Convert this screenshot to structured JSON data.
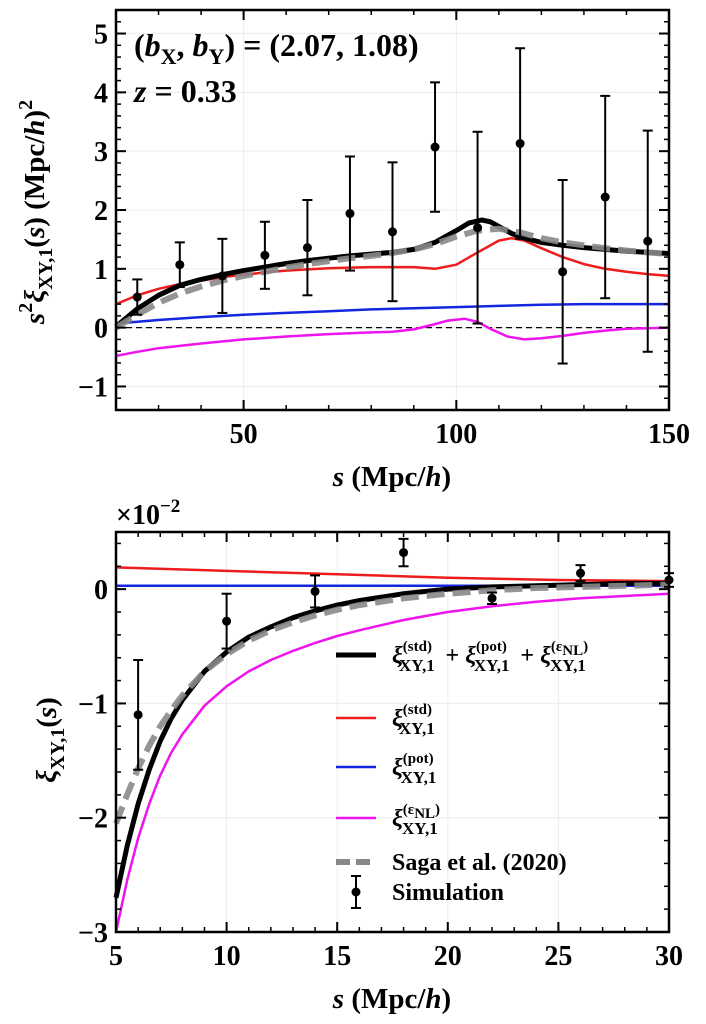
{
  "chart_data": [
    {
      "type": "line",
      "annotation_line1": "(bX, bY) = (2.07, 1.08)",
      "annotation_bias": {
        "lhs_b": "b",
        "lhs_x": "X",
        "lhs_sep": ", ",
        "lhs_y": "Y",
        "rhs": " = (2.07, 1.08)"
      },
      "annotation_z": {
        "var": "z",
        "rhs": " = 0.33"
      },
      "xlabel": {
        "var": "s",
        "unit": " (Mpc/",
        "h": "h",
        "close": ")"
      },
      "ylabel": {
        "s2": "s",
        "sup2": "2",
        "xi": "ξ",
        "sub": "XY,1",
        "arg": "(s)",
        "unit": " (Mpc/",
        "h": "h",
        "close": ")",
        "sq": "2"
      },
      "xlim": [
        20,
        150
      ],
      "ylim": [
        -1.4,
        5.4
      ],
      "xticks": [
        50,
        100,
        150
      ],
      "xtick_labels": [
        "50",
        "100",
        "150"
      ],
      "yticks": [
        -1,
        0,
        1,
        2,
        3,
        4,
        5
      ],
      "ytick_labels": [
        "−1",
        "0",
        "1",
        "2",
        "3",
        "4",
        "5"
      ],
      "series": [
        {
          "name": "total",
          "color": "#000000",
          "style": "solid",
          "x": [
            20,
            25,
            30,
            35,
            40,
            45,
            50,
            55,
            60,
            65,
            70,
            75,
            80,
            85,
            90,
            95,
            100,
            103,
            106,
            108,
            110,
            113,
            116,
            120,
            125,
            130,
            135,
            140,
            145,
            150
          ],
          "y": [
            0.02,
            0.32,
            0.55,
            0.72,
            0.82,
            0.9,
            0.97,
            1.03,
            1.09,
            1.14,
            1.18,
            1.22,
            1.25,
            1.28,
            1.33,
            1.45,
            1.65,
            1.78,
            1.83,
            1.8,
            1.72,
            1.6,
            1.52,
            1.45,
            1.4,
            1.36,
            1.33,
            1.3,
            1.28,
            1.26
          ]
        },
        {
          "name": "std",
          "color": "#ee1c1c",
          "style": "solid",
          "x": [
            20,
            25,
            30,
            35,
            40,
            45,
            50,
            55,
            60,
            65,
            70,
            75,
            80,
            85,
            90,
            95,
            100,
            105,
            110,
            113,
            116,
            120,
            125,
            130,
            135,
            140,
            145,
            150
          ],
          "y": [
            0.4,
            0.55,
            0.66,
            0.74,
            0.8,
            0.86,
            0.9,
            0.94,
            0.97,
            0.99,
            1.01,
            1.02,
            1.03,
            1.03,
            1.03,
            1.0,
            1.07,
            1.28,
            1.48,
            1.52,
            1.48,
            1.35,
            1.2,
            1.08,
            1.0,
            0.95,
            0.91,
            0.88
          ]
        },
        {
          "name": "pot",
          "color": "#1426e0",
          "style": "solid",
          "x": [
            20,
            30,
            40,
            50,
            60,
            70,
            80,
            90,
            100,
            110,
            120,
            130,
            140,
            150
          ],
          "y": [
            0.07,
            0.13,
            0.18,
            0.22,
            0.25,
            0.28,
            0.31,
            0.33,
            0.35,
            0.37,
            0.39,
            0.4,
            0.4,
            0.4
          ]
        },
        {
          "name": "epsNL",
          "color": "#ee14ee",
          "style": "solid",
          "x": [
            20,
            25,
            30,
            40,
            50,
            60,
            70,
            80,
            85,
            90,
            95,
            98,
            102,
            105,
            108,
            112,
            116,
            120,
            125,
            130,
            135,
            140,
            145,
            150
          ],
          "y": [
            -0.48,
            -0.41,
            -0.35,
            -0.27,
            -0.2,
            -0.15,
            -0.11,
            -0.08,
            -0.07,
            -0.03,
            0.06,
            0.12,
            0.15,
            0.1,
            -0.02,
            -0.15,
            -0.2,
            -0.18,
            -0.14,
            -0.09,
            -0.05,
            -0.02,
            -0.01,
            0.0
          ]
        },
        {
          "name": "Saga",
          "color": "#888888",
          "style": "dashed",
          "x": [
            20,
            25,
            30,
            35,
            40,
            45,
            50,
            55,
            60,
            65,
            70,
            75,
            80,
            85,
            90,
            95,
            100,
            105,
            110,
            115,
            120,
            125,
            130,
            135,
            140,
            145,
            150
          ],
          "y": [
            0.0,
            0.22,
            0.42,
            0.58,
            0.7,
            0.8,
            0.88,
            0.95,
            1.02,
            1.08,
            1.13,
            1.18,
            1.22,
            1.27,
            1.33,
            1.42,
            1.55,
            1.65,
            1.68,
            1.62,
            1.52,
            1.45,
            1.4,
            1.35,
            1.31,
            1.28,
            1.25
          ]
        },
        {
          "name": "zero",
          "color": "#000000",
          "style": "thin-dashed",
          "x": [
            20,
            150
          ],
          "y": [
            0,
            0
          ]
        }
      ],
      "points": {
        "name": "Simulation",
        "x": [
          25,
          35,
          45,
          55,
          65,
          75,
          85,
          95,
          105,
          115,
          125,
          135,
          145
        ],
        "y": [
          0.52,
          1.07,
          0.88,
          1.23,
          1.36,
          1.94,
          1.63,
          3.07,
          1.7,
          3.13,
          0.95,
          2.22,
          1.47
        ],
        "err": [
          0.3,
          0.38,
          0.63,
          0.57,
          0.81,
          0.97,
          1.18,
          1.1,
          1.63,
          1.62,
          1.56,
          1.72,
          1.88
        ]
      }
    },
    {
      "type": "line",
      "multiplier": {
        "base": "×10",
        "exp": "−2"
      },
      "xlabel": {
        "var": "s",
        "unit": " (Mpc/",
        "h": "h",
        "close": ")"
      },
      "ylabel": {
        "xi": "ξ",
        "sub": "XY,1",
        "arg": "(s)"
      },
      "xlim": [
        5,
        30
      ],
      "ylim": [
        -3.0,
        0.5
      ],
      "xticks": [
        5,
        10,
        15,
        20,
        25,
        30
      ],
      "xtick_labels": [
        "5",
        "10",
        "15",
        "20",
        "25",
        "30"
      ],
      "yticks": [
        -3,
        -2,
        -1,
        0
      ],
      "ytick_labels": [
        "−3",
        "−2",
        "−1",
        "0"
      ],
      "series": [
        {
          "name": "total",
          "color": "#000000",
          "style": "solid",
          "x": [
            5,
            5.5,
            6,
            6.5,
            7,
            7.5,
            8,
            9,
            10,
            11,
            12,
            13,
            14,
            15,
            16,
            18,
            20,
            22,
            24,
            26,
            28,
            30
          ],
          "y": [
            -2.7,
            -2.25,
            -1.88,
            -1.58,
            -1.33,
            -1.13,
            -0.97,
            -0.72,
            -0.55,
            -0.42,
            -0.33,
            -0.25,
            -0.19,
            -0.14,
            -0.1,
            -0.04,
            0.0,
            0.02,
            0.03,
            0.04,
            0.05,
            0.05
          ]
        },
        {
          "name": "std",
          "color": "#ee1c1c",
          "style": "solid",
          "x": [
            5,
            10,
            15,
            20,
            25,
            30
          ],
          "y": [
            0.19,
            0.16,
            0.13,
            0.1,
            0.08,
            0.07
          ]
        },
        {
          "name": "pot",
          "color": "#1426e0",
          "style": "solid",
          "x": [
            5,
            10,
            15,
            20,
            25,
            30
          ],
          "y": [
            0.03,
            0.03,
            0.03,
            0.03,
            0.03,
            0.03
          ]
        },
        {
          "name": "epsNL",
          "color": "#ee14ee",
          "style": "solid",
          "x": [
            5,
            5.5,
            6,
            6.5,
            7,
            7.5,
            8,
            9,
            10,
            11,
            12,
            13,
            14,
            15,
            16,
            18,
            20,
            22,
            24,
            26,
            28,
            30
          ],
          "y": [
            -3.0,
            -2.55,
            -2.18,
            -1.88,
            -1.63,
            -1.43,
            -1.27,
            -1.02,
            -0.85,
            -0.72,
            -0.62,
            -0.54,
            -0.47,
            -0.41,
            -0.36,
            -0.27,
            -0.2,
            -0.15,
            -0.11,
            -0.08,
            -0.06,
            -0.04
          ]
        },
        {
          "name": "Saga",
          "color": "#888888",
          "style": "dashed",
          "x": [
            5,
            5.5,
            6,
            6.5,
            7,
            7.5,
            8,
            9,
            10,
            11,
            12,
            13,
            14,
            15,
            16,
            18,
            20,
            22,
            24,
            26,
            28,
            30
          ],
          "y": [
            -2.05,
            -1.8,
            -1.57,
            -1.37,
            -1.2,
            -1.06,
            -0.93,
            -0.72,
            -0.57,
            -0.45,
            -0.36,
            -0.29,
            -0.23,
            -0.18,
            -0.14,
            -0.08,
            -0.04,
            -0.01,
            0.01,
            0.02,
            0.03,
            0.04
          ]
        }
      ],
      "points": {
        "name": "Simulation",
        "x": [
          6,
          10,
          14,
          18,
          22,
          26,
          30
        ],
        "y": [
          -1.1,
          -0.28,
          -0.02,
          0.32,
          -0.08,
          0.14,
          0.08
        ],
        "err": [
          0.48,
          0.24,
          0.14,
          0.12,
          0.05,
          0.07,
          0.06
        ]
      },
      "legend": {
        "position": "lower-right",
        "entries": [
          {
            "key": "total",
            "label": "ξ(std)XY,1 + ξ(pot)XY,1 + ξ(εNL)XY,1",
            "terms": [
              {
                "sup": "(std)",
                "sub": "XY,1"
              },
              {
                "sup": "(pot)",
                "sub": "XY,1"
              },
              {
                "sup": "(ε",
                "supsub": "NL",
                "supclose": ")",
                "sub": "XY,1"
              }
            ],
            "xi": "ξ",
            "plus": "+"
          },
          {
            "key": "std",
            "label": "ξ(std)XY,1",
            "xi": "ξ",
            "sup": "(std)",
            "sub": "XY,1"
          },
          {
            "key": "pot",
            "label": "ξ(pot)XY,1",
            "xi": "ξ",
            "sup": "(pot)",
            "sub": "XY,1"
          },
          {
            "key": "epsNL",
            "label": "ξ(εNL)XY,1",
            "xi": "ξ",
            "sup": "(ε",
            "supsub": "NL",
            "supclose": ")",
            "sub": "XY,1"
          },
          {
            "key": "Saga",
            "label": "Saga et al. (2020)"
          },
          {
            "key": "Simulation",
            "label": "Simulation"
          }
        ]
      }
    }
  ]
}
